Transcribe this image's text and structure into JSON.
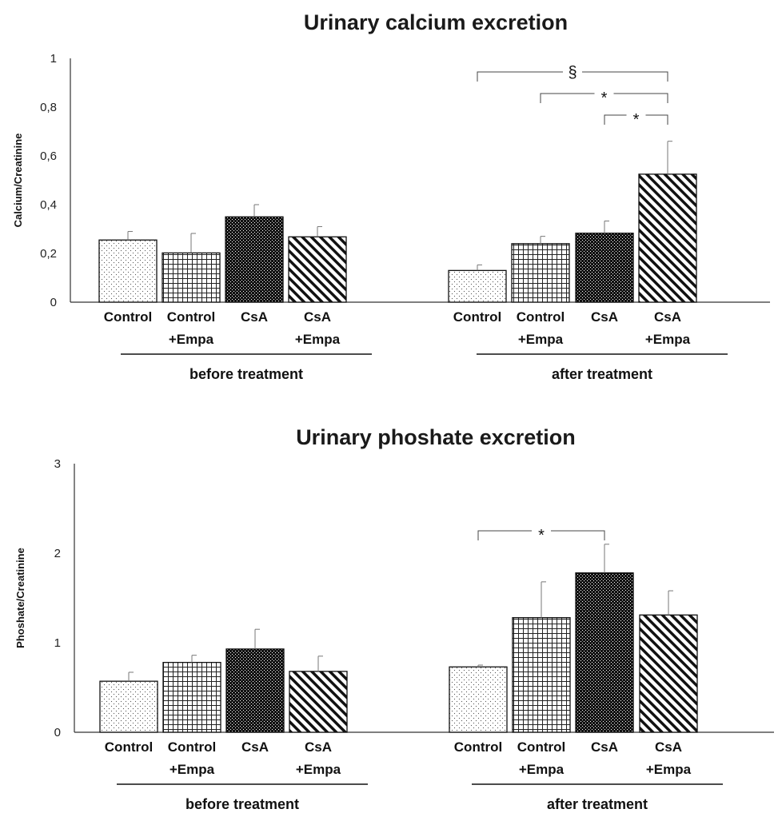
{
  "chart_data": [
    {
      "type": "bar",
      "title": "Urinary calcium excretion",
      "ylabel": "Calcium/Creatinine",
      "ylim": [
        0,
        1
      ],
      "yticks": [
        "0",
        "0,2",
        "0,4",
        "0,6",
        "0,8",
        "1"
      ],
      "groups": [
        "before treatment",
        "after treatment"
      ],
      "categories": [
        [
          "Control"
        ],
        [
          "Control",
          "+Empa"
        ],
        [
          "CsA"
        ],
        [
          "CsA",
          "+Empa"
        ]
      ],
      "patterns": [
        "dots",
        "grid",
        "dense",
        "diagonal"
      ],
      "values": [
        [
          0.255,
          0.202,
          0.35,
          0.268
        ],
        [
          0.13,
          0.24,
          0.283,
          0.525
        ]
      ],
      "errors": [
        [
          0.035,
          0.08,
          0.05,
          0.042
        ],
        [
          0.023,
          0.03,
          0.05,
          0.135
        ]
      ],
      "annotations": [
        {
          "group": 1,
          "from": 0,
          "to": 3,
          "label": "§"
        },
        {
          "group": 1,
          "from": 1,
          "to": 3,
          "label": "*"
        },
        {
          "group": 1,
          "from": 2,
          "to": 3,
          "label": "*"
        }
      ]
    },
    {
      "type": "bar",
      "title": "Urinary phoshate excretion",
      "ylabel": "Phoshate/Creatinine",
      "ylim": [
        0,
        3
      ],
      "yticks": [
        "0",
        "1",
        "2",
        "3"
      ],
      "groups": [
        "before treatment",
        "after treatment"
      ],
      "categories": [
        [
          "Control"
        ],
        [
          "Control",
          "+Empa"
        ],
        [
          "CsA"
        ],
        [
          "CsA",
          "+Empa"
        ]
      ],
      "patterns": [
        "dots",
        "grid",
        "dense",
        "diagonal"
      ],
      "values": [
        [
          0.57,
          0.78,
          0.93,
          0.68
        ],
        [
          0.73,
          1.28,
          1.78,
          1.31
        ]
      ],
      "errors": [
        [
          0.1,
          0.08,
          0.22,
          0.17
        ],
        [
          0.02,
          0.4,
          0.32,
          0.27
        ]
      ],
      "annotations": [
        {
          "group": 1,
          "from": 0,
          "to": 2,
          "label": "*"
        }
      ]
    }
  ]
}
